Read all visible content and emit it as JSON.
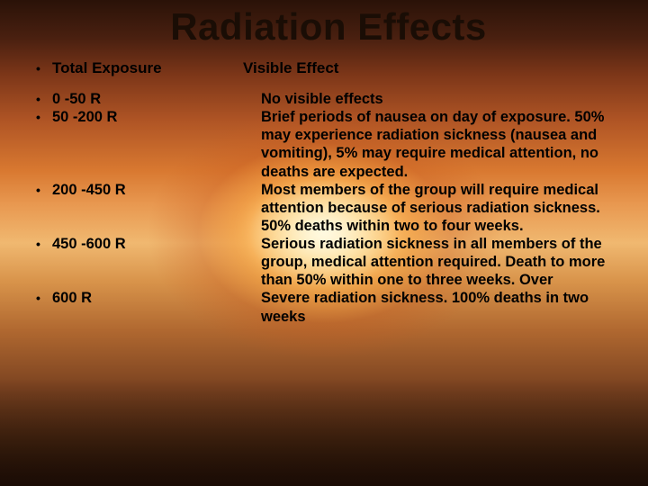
{
  "title": "Radiation Effects",
  "header": {
    "left": "Total Exposure",
    "right": "Visible Effect"
  },
  "rows": [
    {
      "range": "0 -50 R",
      "effect": "No visible effects"
    },
    {
      "range": "50 -200 R",
      "effect": "Brief periods of nausea on day of exposure. 50% may experience radiation sickness (nausea and vomiting), 5% may require medical attention, no deaths are expected."
    },
    {
      "range": "200 -450 R",
      "effect": "Most members of the group will require medical attention because of serious radiation sickness. 50% deaths within two to four weeks."
    },
    {
      "range": "450 -600 R",
      "effect": "Serious radiation sickness in all members of the group, medical attention required. Death to more than 50% within one to three weeks. Over"
    },
    {
      "range": "600 R",
      "effect": "Severe radiation sickness. 100% deaths in two weeks"
    }
  ],
  "bullet_glyph": "•",
  "colors": {
    "text": "#000000",
    "bg_top": "#2a1208",
    "bg_mid": "#e89850",
    "bg_bottom": "#2a1508"
  },
  "typography": {
    "title_fontsize": 42,
    "body_fontsize": 16.5,
    "font_family": "Arial"
  }
}
